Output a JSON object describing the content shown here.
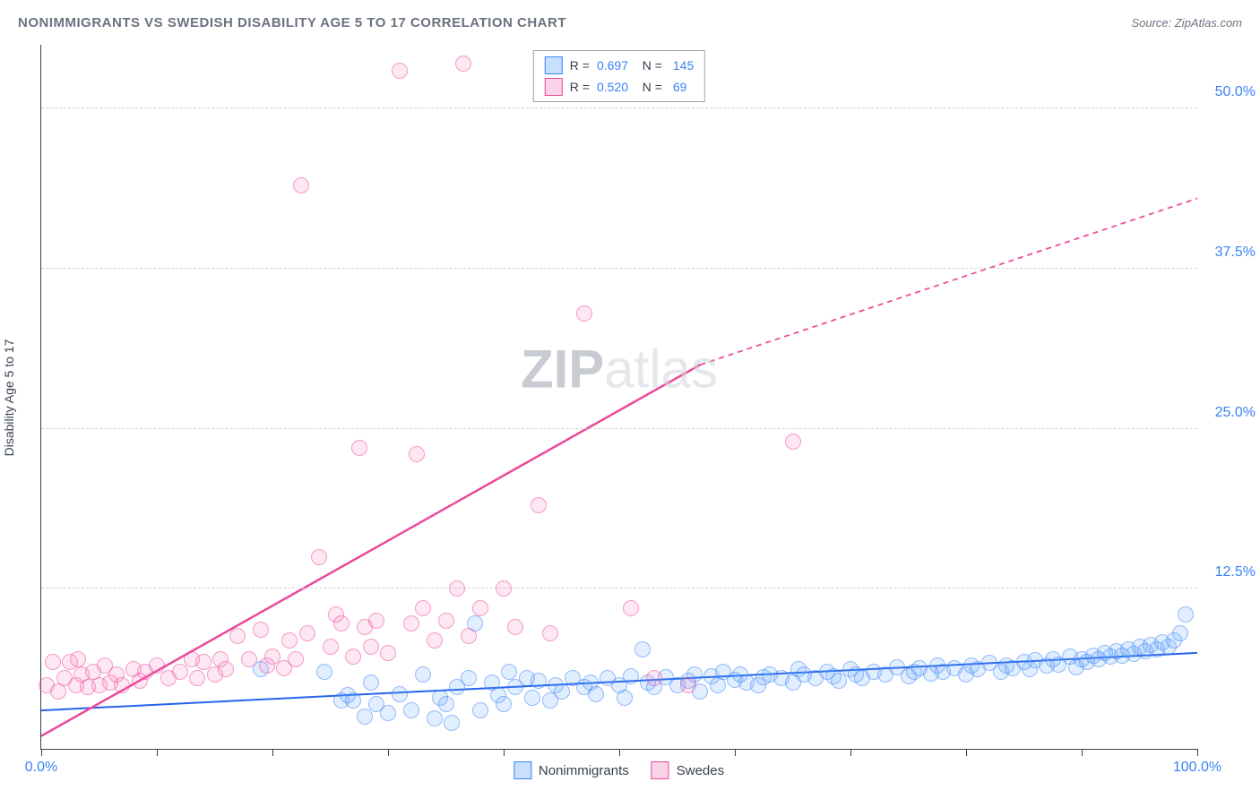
{
  "header": {
    "title": "NONIMMIGRANTS VS SWEDISH DISABILITY AGE 5 TO 17 CORRELATION CHART",
    "source": "Source: ZipAtlas.com"
  },
  "watermark": {
    "bold": "ZIP",
    "light": "atlas"
  },
  "chart": {
    "type": "scatter",
    "y_axis_title": "Disability Age 5 to 17",
    "xlim": [
      0,
      100
    ],
    "ylim": [
      0,
      55
    ],
    "x_ticks": [
      0,
      10,
      20,
      30,
      40,
      50,
      60,
      70,
      80,
      90,
      100
    ],
    "x_labels": [
      {
        "v": 0,
        "t": "0.0%"
      },
      {
        "v": 100,
        "t": "100.0%"
      }
    ],
    "y_gridlines": [
      12.5,
      25.0,
      37.5,
      50.0
    ],
    "y_labels": [
      {
        "v": 12.5,
        "t": "12.5%"
      },
      {
        "v": 25.0,
        "t": "25.0%"
      },
      {
        "v": 37.5,
        "t": "37.5%"
      },
      {
        "v": 50.0,
        "t": "50.0%"
      }
    ],
    "grid_color": "#d1d5db",
    "axis_color": "#374151",
    "background_color": "#ffffff",
    "label_color": "#3b82f6",
    "label_fontsize": 16,
    "marker_radius": 9,
    "legend_top": [
      {
        "swatch": "blue",
        "r": "0.697",
        "n": "145"
      },
      {
        "swatch": "pink",
        "r": "0.520",
        "n": "69"
      }
    ],
    "legend_bottom": [
      {
        "swatch": "blue",
        "label": "Nonimmigrants"
      },
      {
        "swatch": "pink",
        "label": "Swedes"
      }
    ],
    "series": [
      {
        "name": "Nonimmigrants",
        "color": "#3b82f6",
        "fill": "rgba(96,165,250,0.35)",
        "trend": {
          "x1": 0,
          "y1": 3.0,
          "x2": 100,
          "y2": 7.5,
          "dash_after": null,
          "color": "#2563eb",
          "width": 2
        },
        "points": [
          [
            19,
            6.2
          ],
          [
            24.5,
            6.0
          ],
          [
            26,
            3.8
          ],
          [
            26.5,
            4.2
          ],
          [
            27,
            3.8
          ],
          [
            28,
            2.5
          ],
          [
            28.5,
            5.2
          ],
          [
            29,
            3.5
          ],
          [
            30,
            2.8
          ],
          [
            31,
            4.3
          ],
          [
            32,
            3.0
          ],
          [
            33,
            5.8
          ],
          [
            34,
            2.4
          ],
          [
            34.5,
            4.0
          ],
          [
            35,
            3.5
          ],
          [
            35.5,
            2.0
          ],
          [
            36,
            4.8
          ],
          [
            37,
            5.5
          ],
          [
            37.5,
            9.8
          ],
          [
            38,
            3.0
          ],
          [
            39,
            5.2
          ],
          [
            39.5,
            4.2
          ],
          [
            40,
            3.5
          ],
          [
            40.5,
            6.0
          ],
          [
            41,
            4.8
          ],
          [
            42,
            5.5
          ],
          [
            42.5,
            4.0
          ],
          [
            43,
            5.3
          ],
          [
            44,
            3.8
          ],
          [
            44.5,
            5.0
          ],
          [
            45,
            4.5
          ],
          [
            46,
            5.5
          ],
          [
            47,
            4.8
          ],
          [
            47.5,
            5.2
          ],
          [
            48,
            4.3
          ],
          [
            49,
            5.5
          ],
          [
            50,
            5.0
          ],
          [
            50.5,
            4.0
          ],
          [
            51,
            5.7
          ],
          [
            52,
            7.8
          ],
          [
            52.5,
            5.2
          ],
          [
            53,
            4.8
          ],
          [
            54,
            5.6
          ],
          [
            55,
            5.0
          ],
          [
            56,
            5.3
          ],
          [
            56.5,
            5.8
          ],
          [
            57,
            4.5
          ],
          [
            58,
            5.7
          ],
          [
            58.5,
            5.0
          ],
          [
            59,
            6.0
          ],
          [
            60,
            5.4
          ],
          [
            60.5,
            5.8
          ],
          [
            61,
            5.2
          ],
          [
            62,
            5.0
          ],
          [
            62.5,
            5.6
          ],
          [
            63,
            5.8
          ],
          [
            64,
            5.5
          ],
          [
            65,
            5.2
          ],
          [
            65.5,
            6.2
          ],
          [
            66,
            5.8
          ],
          [
            67,
            5.5
          ],
          [
            68,
            6.0
          ],
          [
            68.5,
            5.7
          ],
          [
            69,
            5.3
          ],
          [
            70,
            6.2
          ],
          [
            70.5,
            5.8
          ],
          [
            71,
            5.5
          ],
          [
            72,
            6.0
          ],
          [
            73,
            5.8
          ],
          [
            74,
            6.4
          ],
          [
            75,
            5.7
          ],
          [
            75.5,
            6.0
          ],
          [
            76,
            6.3
          ],
          [
            77,
            5.9
          ],
          [
            77.5,
            6.5
          ],
          [
            78,
            6.0
          ],
          [
            79,
            6.3
          ],
          [
            80,
            5.8
          ],
          [
            80.5,
            6.5
          ],
          [
            81,
            6.2
          ],
          [
            82,
            6.7
          ],
          [
            83,
            6.0
          ],
          [
            83.5,
            6.5
          ],
          [
            84,
            6.3
          ],
          [
            85,
            6.8
          ],
          [
            85.5,
            6.2
          ],
          [
            86,
            6.9
          ],
          [
            87,
            6.5
          ],
          [
            87.5,
            7.0
          ],
          [
            88,
            6.6
          ],
          [
            89,
            7.2
          ],
          [
            89.5,
            6.4
          ],
          [
            90,
            7.0
          ],
          [
            90.5,
            6.8
          ],
          [
            91,
            7.3
          ],
          [
            91.5,
            7.0
          ],
          [
            92,
            7.5
          ],
          [
            92.5,
            7.2
          ],
          [
            93,
            7.6
          ],
          [
            93.5,
            7.3
          ],
          [
            94,
            7.8
          ],
          [
            94.5,
            7.4
          ],
          [
            95,
            8.0
          ],
          [
            95.5,
            7.6
          ],
          [
            96,
            8.1
          ],
          [
            96.5,
            7.8
          ],
          [
            97,
            8.3
          ],
          [
            97.5,
            8.0
          ],
          [
            98,
            8.5
          ],
          [
            98.5,
            9.0
          ],
          [
            99,
            10.5
          ]
        ]
      },
      {
        "name": "Swedes",
        "color": "#ec4899",
        "fill": "rgba(244,114,182,0.3)",
        "trend": {
          "x1": 0,
          "y1": 1.0,
          "x2": 57,
          "y2": 30.0,
          "dash_after": 57,
          "dash_x2": 100,
          "dash_y2": 43.0,
          "color": "#ec4899",
          "width": 2.5
        },
        "points": [
          [
            0.5,
            5.0
          ],
          [
            1,
            6.8
          ],
          [
            1.5,
            4.5
          ],
          [
            2,
            5.5
          ],
          [
            2.5,
            6.8
          ],
          [
            3,
            5.0
          ],
          [
            3.2,
            7.0
          ],
          [
            3.5,
            5.8
          ],
          [
            4,
            4.8
          ],
          [
            4.5,
            6.0
          ],
          [
            5,
            5.0
          ],
          [
            5.5,
            6.5
          ],
          [
            6,
            5.2
          ],
          [
            6.5,
            5.8
          ],
          [
            7,
            5.0
          ],
          [
            8,
            6.2
          ],
          [
            8.5,
            5.3
          ],
          [
            9,
            6.0
          ],
          [
            10,
            6.5
          ],
          [
            11,
            5.5
          ],
          [
            12,
            6.0
          ],
          [
            13,
            7.0
          ],
          [
            13.5,
            5.5
          ],
          [
            14,
            6.8
          ],
          [
            15,
            5.8
          ],
          [
            15.5,
            7.0
          ],
          [
            16,
            6.2
          ],
          [
            17,
            8.8
          ],
          [
            18,
            7.0
          ],
          [
            19,
            9.3
          ],
          [
            19.5,
            6.5
          ],
          [
            20,
            7.2
          ],
          [
            21,
            6.3
          ],
          [
            21.5,
            8.5
          ],
          [
            22,
            7.0
          ],
          [
            22.5,
            44.0
          ],
          [
            23,
            9.0
          ],
          [
            24,
            15.0
          ],
          [
            25,
            8.0
          ],
          [
            25.5,
            10.5
          ],
          [
            26,
            9.8
          ],
          [
            27,
            7.2
          ],
          [
            27.5,
            23.5
          ],
          [
            28,
            9.5
          ],
          [
            28.5,
            8.0
          ],
          [
            29,
            10.0
          ],
          [
            30,
            7.5
          ],
          [
            31,
            53.0
          ],
          [
            32,
            9.8
          ],
          [
            32.5,
            23.0
          ],
          [
            33,
            11.0
          ],
          [
            34,
            8.5
          ],
          [
            35,
            10.0
          ],
          [
            36,
            12.5
          ],
          [
            36.5,
            53.5
          ],
          [
            37,
            8.8
          ],
          [
            38,
            11.0
          ],
          [
            40,
            12.5
          ],
          [
            41,
            9.5
          ],
          [
            43,
            19.0
          ],
          [
            44,
            9.0
          ],
          [
            47,
            34.0
          ],
          [
            51,
            11.0
          ],
          [
            53,
            5.5
          ],
          [
            56,
            5.0
          ],
          [
            65,
            24.0
          ]
        ]
      }
    ]
  }
}
